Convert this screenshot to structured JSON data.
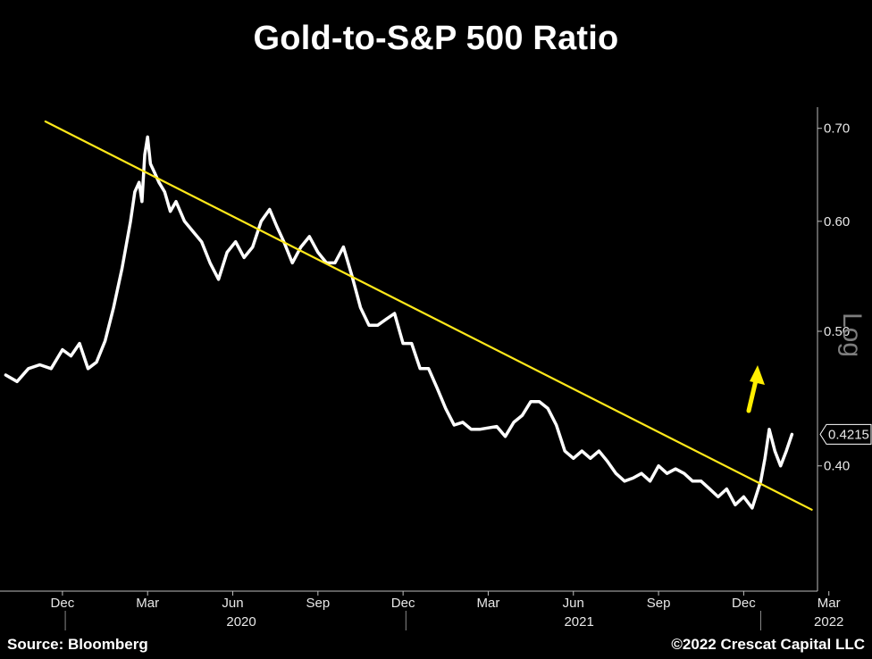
{
  "chart_data": {
    "type": "line",
    "title": "Gold-to-S&P 500 Ratio",
    "scale": "log",
    "scale_label": "Log",
    "ylim": [
      0.325,
      0.725
    ],
    "yticks": [
      {
        "value": 0.4,
        "label": "0.40"
      },
      {
        "value": 0.5,
        "label": "0.50"
      },
      {
        "value": 0.6,
        "label": "0.60"
      },
      {
        "value": 0.7,
        "label": "0.70"
      }
    ],
    "xlim": [
      -2.2,
      26.6
    ],
    "month_ticks": [
      {
        "label": "Dec",
        "x": 0
      },
      {
        "label": "Mar",
        "x": 3
      },
      {
        "label": "Jun",
        "x": 6
      },
      {
        "label": "Sep",
        "x": 9
      },
      {
        "label": "Dec",
        "x": 12
      },
      {
        "label": "Mar",
        "x": 15
      },
      {
        "label": "Jun",
        "x": 18
      },
      {
        "label": "Sep",
        "x": 21
      },
      {
        "label": "Dec",
        "x": 24
      },
      {
        "label": "Mar",
        "x": 27
      }
    ],
    "year_labels": [
      {
        "label": "2020",
        "x": 6.3,
        "separator_x": 0.1
      },
      {
        "label": "2021",
        "x": 18.2,
        "separator_x": 12.1
      },
      {
        "label": "2022",
        "x": 27.0,
        "separator_x": 24.6
      }
    ],
    "last_value": {
      "value": 0.4215,
      "label": "0.4215"
    },
    "series": [
      {
        "name": "Gold-to-S&P 500 Ratio",
        "color": "#ffffff",
        "x": [
          -2.0,
          -1.6,
          -1.2,
          -0.8,
          -0.4,
          0.0,
          0.3,
          0.6,
          0.9,
          1.2,
          1.5,
          1.8,
          2.1,
          2.4,
          2.55,
          2.7,
          2.8,
          2.9,
          3.0,
          3.1,
          3.25,
          3.4,
          3.6,
          3.8,
          4.0,
          4.3,
          4.6,
          4.9,
          5.2,
          5.5,
          5.8,
          6.1,
          6.4,
          6.7,
          7.0,
          7.3,
          7.55,
          7.8,
          8.1,
          8.4,
          8.7,
          9.0,
          9.3,
          9.6,
          9.9,
          10.2,
          10.5,
          10.8,
          11.1,
          11.4,
          11.7,
          12.0,
          12.3,
          12.6,
          12.9,
          13.2,
          13.5,
          13.8,
          14.1,
          14.4,
          14.7,
          15.0,
          15.3,
          15.6,
          15.9,
          16.2,
          16.5,
          16.8,
          17.1,
          17.4,
          17.7,
          18.0,
          18.3,
          18.6,
          18.9,
          19.2,
          19.5,
          19.8,
          20.1,
          20.4,
          20.7,
          21.0,
          21.3,
          21.6,
          21.9,
          22.2,
          22.5,
          22.8,
          23.1,
          23.4,
          23.7,
          24.0,
          24.3,
          24.6,
          24.75,
          24.9,
          25.1,
          25.3,
          25.5,
          25.7
        ],
        "values": [
          0.465,
          0.46,
          0.47,
          0.473,
          0.47,
          0.485,
          0.48,
          0.49,
          0.47,
          0.475,
          0.492,
          0.52,
          0.555,
          0.6,
          0.63,
          0.64,
          0.62,
          0.67,
          0.69,
          0.66,
          0.65,
          0.64,
          0.63,
          0.61,
          0.62,
          0.6,
          0.59,
          0.58,
          0.56,
          0.545,
          0.57,
          0.58,
          0.565,
          0.575,
          0.6,
          0.612,
          0.595,
          0.58,
          0.56,
          0.575,
          0.585,
          0.57,
          0.56,
          0.56,
          0.575,
          0.548,
          0.52,
          0.505,
          0.505,
          0.51,
          0.515,
          0.49,
          0.49,
          0.47,
          0.47,
          0.455,
          0.44,
          0.428,
          0.43,
          0.425,
          0.425,
          0.426,
          0.427,
          0.42,
          0.43,
          0.435,
          0.445,
          0.445,
          0.44,
          0.428,
          0.41,
          0.405,
          0.41,
          0.405,
          0.41,
          0.403,
          0.395,
          0.39,
          0.392,
          0.395,
          0.39,
          0.4,
          0.395,
          0.398,
          0.395,
          0.39,
          0.39,
          0.385,
          0.38,
          0.385,
          0.375,
          0.38,
          0.373,
          0.39,
          0.405,
          0.425,
          0.41,
          0.4,
          0.41,
          0.4215
        ]
      },
      {
        "name": "Downtrend line",
        "color": "#ffe81a",
        "x": [
          -0.6,
          26.4
        ],
        "values": [
          0.708,
          0.372
        ]
      }
    ]
  },
  "annotations": {
    "arrow": {
      "label": "up-arrow",
      "color": "#ffee00"
    }
  },
  "footer": {
    "source": "Source: Bloomberg",
    "credit": "©2022 Crescat Capital LLC"
  }
}
